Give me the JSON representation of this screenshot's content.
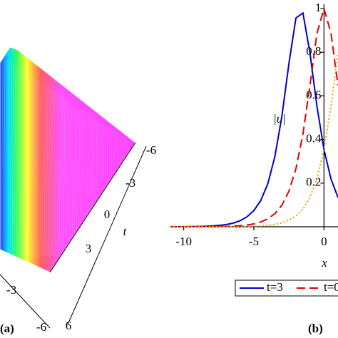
{
  "chart_data": [
    {
      "type": "surface",
      "caption": "(a)",
      "ylabel": "t",
      "yticks": [
        -6,
        -3,
        0,
        3,
        6
      ],
      "xticks": [
        -3,
        -6
      ]
    },
    {
      "type": "line",
      "caption": "(b)",
      "xlabel": "x",
      "ylabel": "|u|",
      "xlim": [
        -11.1,
        1
      ],
      "ylim": [
        0,
        1.02
      ],
      "xticks": [
        -10,
        -5,
        0
      ],
      "yticks": [
        0.2,
        0.4,
        0.6,
        0.8,
        1
      ],
      "x": [
        -11,
        -10.5,
        -10,
        -9.5,
        -9,
        -8.5,
        -8,
        -7.5,
        -7,
        -6.5,
        -6,
        -5.5,
        -5,
        -4.5,
        -4,
        -3.5,
        -3,
        -2.5,
        -2,
        -1.5,
        -1,
        -0.5,
        0,
        0.5,
        1
      ],
      "series": [
        {
          "name": "t=3",
          "color": "#0000cc",
          "dash": "solid",
          "values": [
            0.00018,
            0.0003,
            0.0005,
            0.0008,
            0.0013,
            0.0022,
            0.0037,
            0.006,
            0.01,
            0.016,
            0.027,
            0.045,
            0.074,
            0.121,
            0.198,
            0.322,
            0.507,
            0.748,
            0.957,
            0.98,
            0.797,
            0.552,
            0.354,
            0.219,
            0.134
          ]
        },
        {
          "name": "t=0",
          "color": "#dd0000",
          "dash": "dashed",
          "values": [
            3e-05,
            6e-05,
            9e-05,
            0.00015,
            0.00025,
            0.0004,
            0.0007,
            0.0011,
            0.0018,
            0.003,
            0.005,
            0.008,
            0.013,
            0.022,
            0.037,
            0.06,
            0.099,
            0.163,
            0.266,
            0.425,
            0.648,
            0.887,
            1,
            0.887,
            0.648
          ]
        },
        {
          "color": "#e6a000",
          "dash": "dotted",
          "values": [
            6e-06,
            1e-05,
            2e-05,
            3e-05,
            5e-05,
            7e-05,
            0.00012,
            0.0002,
            0.00033,
            0.00055,
            0.0009,
            0.0015,
            0.0025,
            0.004,
            0.0067,
            0.011,
            0.018,
            0.03,
            0.049,
            0.081,
            0.134,
            0.219,
            0.354,
            0.552,
            0.797
          ]
        }
      ]
    }
  ]
}
